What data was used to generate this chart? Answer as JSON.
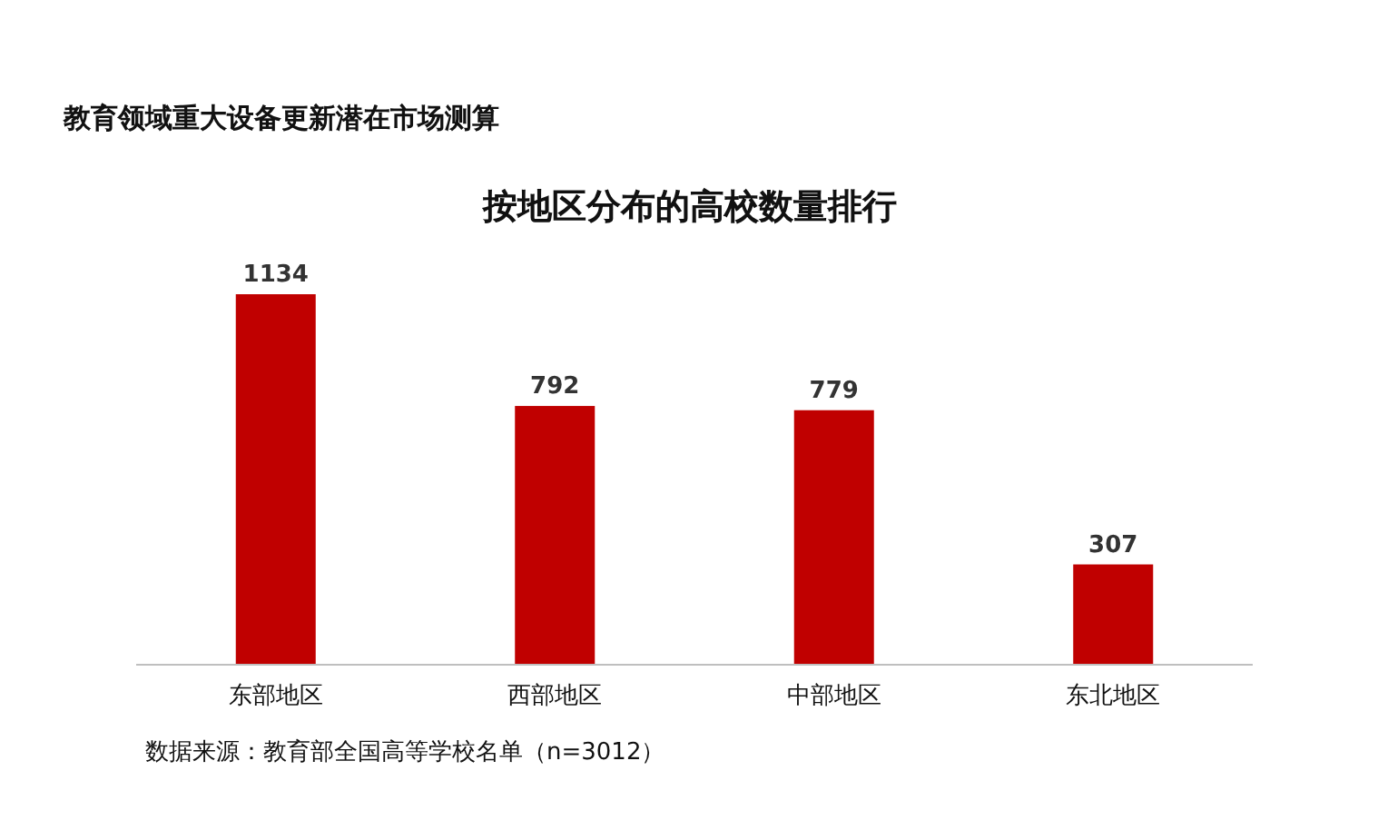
{
  "chart_data": {
    "type": "bar",
    "title": "按地区分布的高校数量排行",
    "subtitle": "教育领域重大设备更新潜在市场测算",
    "categories": [
      "东部地区",
      "西部地区",
      "中部地区",
      "东北地区"
    ],
    "values": [
      1134,
      792,
      779,
      307
    ],
    "color": "#c00000",
    "data_labels": true,
    "annotations": [
      "数据来源：教育部全国高等学校名单（n=3012）"
    ]
  }
}
